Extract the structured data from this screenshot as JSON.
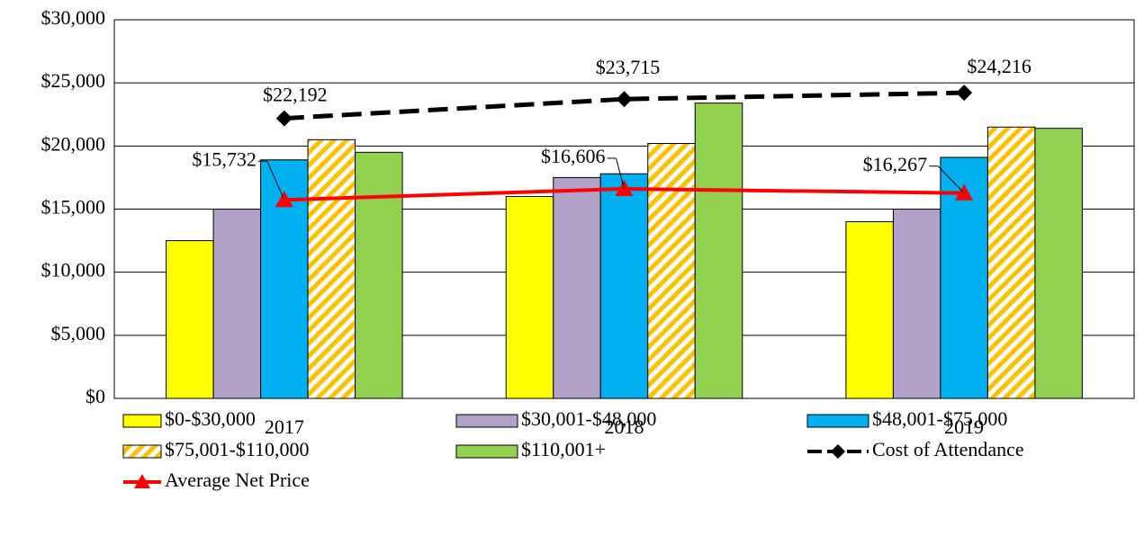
{
  "chart_data": {
    "type": "bar",
    "categories": [
      "2017",
      "2018",
      "2019"
    ],
    "ylim": [
      0,
      30000
    ],
    "yticks": [
      {
        "value": 0,
        "label": "$0"
      },
      {
        "value": 5000,
        "label": "$5,000"
      },
      {
        "value": 10000,
        "label": "$10,000"
      },
      {
        "value": 15000,
        "label": "$15,000"
      },
      {
        "value": 20000,
        "label": "$20,000"
      },
      {
        "value": 25000,
        "label": "$25,000"
      },
      {
        "value": 30000,
        "label": "$30,000"
      }
    ],
    "grid": true,
    "legend": "bottom",
    "series": [
      {
        "name": "$0-$30,000",
        "type": "bar",
        "color": "#ffff00",
        "values": [
          12500,
          16000,
          14000
        ]
      },
      {
        "name": "$30,001-$48,000",
        "type": "bar",
        "color": "#b1a0c7",
        "values": [
          15000,
          17500,
          15000
        ]
      },
      {
        "name": "$48,001-$75,000",
        "type": "bar",
        "color": "#00b0f0",
        "values": [
          18900,
          17800,
          19100
        ]
      },
      {
        "name": "$75,001-$110,000",
        "type": "bar",
        "color": "#ffc000",
        "pattern": "hatch",
        "values": [
          20500,
          20200,
          21500
        ]
      },
      {
        "name": "$110,001+",
        "type": "bar",
        "color": "#92d050",
        "values": [
          19500,
          23400,
          21400
        ]
      },
      {
        "name": "Cost of Attendance",
        "type": "line",
        "color": "#000000",
        "dash": true,
        "marker": "diamond",
        "values": [
          22192,
          23715,
          24216
        ],
        "value_labels": [
          "$22,192",
          "$23,715",
          "$24,216"
        ]
      },
      {
        "name": "Average Net Price",
        "type": "line",
        "color": "#ff0000",
        "marker": "triangle",
        "values": [
          15732,
          16606,
          16267
        ],
        "value_labels": [
          "$15,732",
          "$16,606",
          "$16,267"
        ]
      }
    ]
  }
}
